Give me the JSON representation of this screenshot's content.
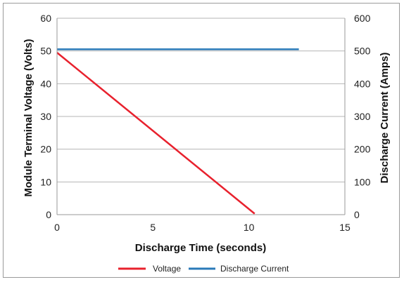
{
  "chart_data": {
    "type": "line",
    "title": "",
    "xlabel": "Discharge Time (seconds)",
    "ylabel_left": "Module Terminal Voltage (Volts)",
    "ylabel_right": "Discharge Current (Amps)",
    "xlim": [
      0,
      15
    ],
    "ylim_left": [
      0,
      60
    ],
    "ylim_right": [
      0,
      600
    ],
    "x_ticks": [
      "0",
      "5",
      "10",
      "15"
    ],
    "y_left_ticks": [
      "0",
      "10",
      "20",
      "30",
      "40",
      "50",
      "60"
    ],
    "y_right_ticks": [
      "0",
      "100",
      "200",
      "300",
      "400",
      "500",
      "600"
    ],
    "grid": "horizontal",
    "legend_position": "bottom",
    "series": [
      {
        "name": "Voltage",
        "axis": "left",
        "color": "#e8212d",
        "x": [
          0,
          10.3
        ],
        "y": [
          49.5,
          0.3
        ]
      },
      {
        "name": "Discharge Current",
        "axis": "right",
        "color": "#2a7ab8",
        "x": [
          0,
          12.6
        ],
        "y": [
          505,
          505
        ]
      }
    ]
  }
}
